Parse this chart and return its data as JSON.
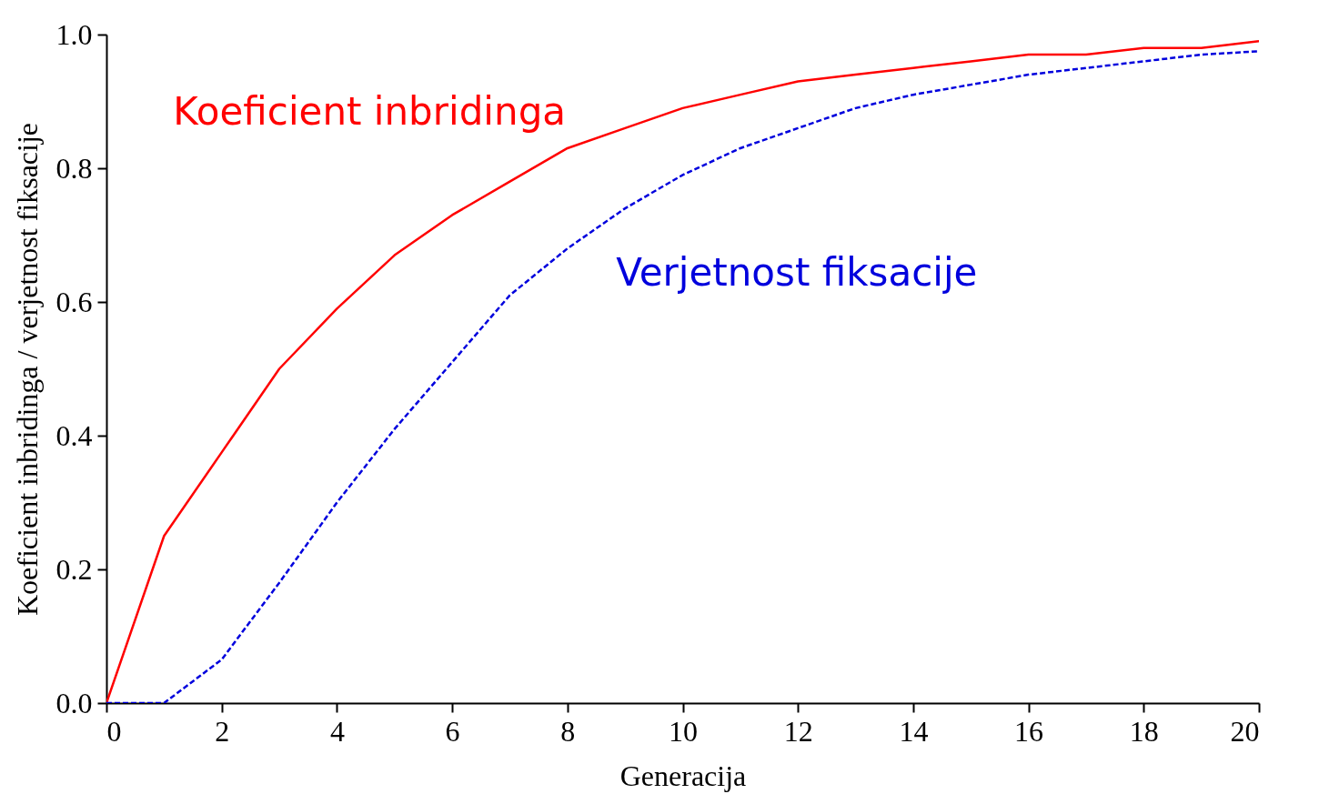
{
  "chart_data": {
    "type": "line",
    "xlabel": "Generacija",
    "ylabel": "Koeficient inbridinga / verjetnost fiksacije",
    "x": [
      0,
      1,
      2,
      3,
      4,
      5,
      6,
      7,
      8,
      9,
      10,
      11,
      12,
      13,
      14,
      15,
      16,
      17,
      18,
      19,
      20
    ],
    "xlim": [
      0,
      20
    ],
    "xticks": [
      0,
      2,
      4,
      6,
      8,
      10,
      12,
      14,
      16,
      18,
      20
    ],
    "ylim": [
      0,
      1
    ],
    "yticks": [
      {
        "value": 0,
        "label": "0.0"
      },
      {
        "value": 0.2,
        "label": "0.2"
      },
      {
        "value": 0.4,
        "label": "0.4"
      },
      {
        "value": 0.6,
        "label": "0.6"
      },
      {
        "value": 0.8,
        "label": "0.8"
      },
      {
        "value": 1,
        "label": "1.0"
      }
    ],
    "series": [
      {
        "name": "Koeficient inbridinga",
        "color": "#ff0000",
        "line_style": "solid",
        "values": [
          0,
          0.25,
          0.375,
          0.5,
          0.59,
          0.67,
          0.73,
          0.78,
          0.83,
          0.86,
          0.89,
          0.91,
          0.93,
          0.94,
          0.95,
          0.96,
          0.97,
          0.97,
          0.98,
          0.98,
          0.99
        ]
      },
      {
        "name": "Verjetnost fiksacije",
        "color": "#0000dd",
        "line_style": "dashed",
        "values": [
          0,
          0,
          0.065,
          0.18,
          0.3,
          0.41,
          0.51,
          0.61,
          0.68,
          0.74,
          0.79,
          0.83,
          0.86,
          0.89,
          0.91,
          0.925,
          0.94,
          0.95,
          0.96,
          0.97,
          0.975
        ]
      }
    ],
    "grid": false,
    "marker": "none"
  }
}
